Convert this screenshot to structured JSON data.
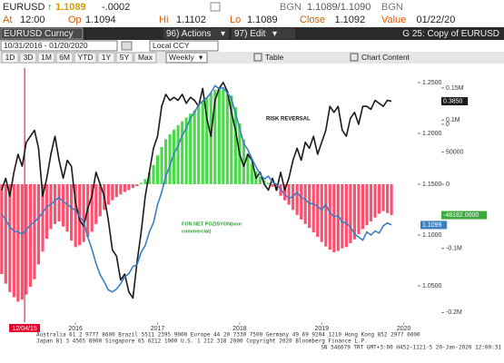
{
  "quote": {
    "ticker": "EURUSD",
    "last": "1.1089",
    "change": "-.0002",
    "bid_label": "BGN",
    "bid_ask": "1.1089/1.1090",
    "ask_label": "BGN"
  },
  "quote_details": [
    {
      "label": "At",
      "value": "12:00"
    },
    {
      "label": "Op",
      "value": "1.1094"
    },
    {
      "label": "Hi",
      "value": "1.1102"
    },
    {
      "label": "Lo",
      "value": "1.1089"
    },
    {
      "label": "Close",
      "value": "1.1092"
    },
    {
      "label": "Value",
      "value": "01/22/20"
    }
  ],
  "toolbar": {
    "security": "EURUSD Curncy",
    "actions": "96) Actions",
    "edit": "97) Edit",
    "chart_name": "G 25: Copy of EURUSD",
    "date_range": "10/31/2016 - 01/20/2020",
    "currency": "Local CCY",
    "periods": [
      "1D",
      "3D",
      "1M",
      "6M",
      "YTD",
      "1Y",
      "5Y",
      "Max"
    ],
    "frequency": "Weekly",
    "table": "Table",
    "chart_content": "Chart Content"
  },
  "chart_data": {
    "type": "combo",
    "annotations": [
      "RISK REVERSAL",
      "FON NET POZISYON(non",
      "commercial)"
    ],
    "cursor": {
      "x": 2015.38,
      "label": "12/04/15",
      "color": "#e8002a"
    },
    "x": [
      2015.1,
      2015.15,
      2015.2,
      2015.25,
      2015.3,
      2015.35,
      2015.4,
      2015.45,
      2015.5,
      2015.55,
      2015.6,
      2015.65,
      2015.7,
      2015.75,
      2015.8,
      2015.85,
      2015.9,
      2015.95,
      2016,
      2016.05,
      2016.1,
      2016.15,
      2016.2,
      2016.25,
      2016.3,
      2016.35,
      2016.4,
      2016.45,
      2016.5,
      2016.55,
      2016.6,
      2016.65,
      2016.7,
      2016.75,
      2016.8,
      2016.85,
      2016.9,
      2016.95,
      2017,
      2017.05,
      2017.1,
      2017.15,
      2017.2,
      2017.25,
      2017.3,
      2017.35,
      2017.4,
      2017.45,
      2017.5,
      2017.55,
      2017.6,
      2017.65,
      2017.7,
      2017.75,
      2017.8,
      2017.85,
      2017.9,
      2017.95,
      2018,
      2018.05,
      2018.1,
      2018.15,
      2018.2,
      2018.25,
      2018.3,
      2018.35,
      2018.4,
      2018.45,
      2018.5,
      2018.55,
      2018.6,
      2018.65,
      2018.7,
      2018.75,
      2018.8,
      2018.85,
      2018.9,
      2018.95,
      2019,
      2019.05,
      2019.1,
      2019.15,
      2019.2,
      2019.25,
      2019.3,
      2019.35,
      2019.4,
      2019.45,
      2019.5,
      2019.55,
      2019.6,
      2019.65,
      2019.7,
      2019.75,
      2019.8,
      2019.85
    ],
    "xlim": [
      2015.08,
      2020.17
    ],
    "xticks": [
      2016,
      2017,
      2018,
      2019,
      2020
    ],
    "ylim": [
      1.0143,
      1.2643
    ],
    "yticks": [
      {
        "value": 1.25,
        "label": "1.2500"
      },
      {
        "value": 1.2,
        "label": "1.2000"
      },
      {
        "value": 1.15,
        "label": "1.1500"
      },
      {
        "value": 1.1,
        "label": "1.1000"
      },
      {
        "value": 1.05,
        "label": "1.0500"
      }
    ],
    "y2lim": [
      -215000,
      181000
    ],
    "y2ticks": [
      {
        "value": 150000,
        "label": "0.15M"
      },
      {
        "value": 100000,
        "label": "0.1M"
      },
      50000,
      0,
      {
        "value": -100000,
        "label": "-0.1M"
      },
      {
        "value": -200000,
        "label": "-0.2M"
      }
    ],
    "y3lim": [
      -3.303,
      0.939
    ],
    "y3ticks": [
      0,
      {
        "value": -1.5,
        "label": "-1.5000"
      }
    ],
    "series": [
      {
        "name": "FON NET POZISYON(non commercial)",
        "type": "bar",
        "axis": "y2",
        "positive_color": "#4cd94c",
        "negative_color": "#ff4f6e",
        "tag_color": "#3aa83a",
        "last_label": "-48182.0000",
        "values": [
          -140000,
          -155000,
          -168000,
          -176000,
          -183000,
          -180000,
          -172000,
          -160000,
          -148000,
          -125000,
          -105000,
          -85000,
          -70000,
          -62000,
          -58000,
          -66000,
          -74000,
          -88000,
          -98000,
          -95000,
          -90000,
          -82000,
          -74000,
          -62000,
          -50000,
          -40000,
          -32000,
          -25000,
          -20000,
          -16000,
          -12000,
          -9000,
          -6000,
          -3000,
          2000,
          8000,
          18000,
          30000,
          45000,
          58000,
          70000,
          78000,
          85000,
          92000,
          98000,
          104000,
          110000,
          115000,
          120000,
          128000,
          135000,
          142000,
          147000,
          150000,
          148000,
          145000,
          138000,
          120000,
          95000,
          70000,
          48000,
          32000,
          20000,
          12000,
          6000,
          2000,
          -4000,
          -10000,
          -18000,
          -25000,
          -32000,
          -40000,
          -48000,
          -55000,
          -62000,
          -68000,
          -75000,
          -82000,
          -90000,
          -97000,
          -102000,
          -106000,
          -104000,
          -100000,
          -98000,
          -92000,
          -86000,
          -78000,
          -70000,
          -64000,
          -58000,
          -52000,
          -46000,
          -42000,
          -45000,
          -48182
        ]
      },
      {
        "name": "RISK REVERSAL",
        "type": "line",
        "axis": "y3",
        "color": "#1a1a1a",
        "last_label": "0.3850",
        "values": [
          -1.1,
          -0.9,
          -1.2,
          -0.8,
          -0.5,
          -0.7,
          -0.3,
          -0.2,
          -0.1,
          -0.4,
          -1.2,
          -0.9,
          -0.5,
          -0.2,
          -0.6,
          -0.9,
          -0.6,
          -0.7,
          -1.3,
          -1.6,
          -1.7,
          -1.4,
          -1.2,
          -0.8,
          -1.0,
          -1.2,
          -1.6,
          -2.1,
          -2.2,
          -2.6,
          -2.5,
          -2.8,
          -2.9,
          -2.3,
          -1.8,
          -1.2,
          -0.8,
          -0.4,
          -0.2,
          0.3,
          0.5,
          0.4,
          0.45,
          0.4,
          0.5,
          0.35,
          0.45,
          0.4,
          0.3,
          0.6,
          0.1,
          -0.2,
          0.4,
          0.6,
          0.7,
          0.55,
          0.2,
          -0.1,
          -0.5,
          -0.7,
          -0.5,
          -0.6,
          -0.9,
          -0.8,
          -1.0,
          -1.1,
          -0.9,
          -1.1,
          -0.8,
          -1.1,
          -0.9,
          -0.6,
          -0.4,
          -0.6,
          -0.3,
          -0.4,
          -0.2,
          -0.5,
          -0.3,
          -0.1,
          0.3,
          0.2,
          0.3,
          -0.1,
          -0.2,
          0.1,
          0.2,
          0.0,
          0.3,
          0.3,
          0.25,
          0.4,
          0.35,
          0.3,
          0.4,
          0.385
        ]
      },
      {
        "name": "EURUSD",
        "type": "line",
        "axis": "y",
        "color": "#3d7fc1",
        "last_label": "1.1099",
        "values": [
          1.121,
          1.115,
          1.108,
          1.104,
          1.103,
          1.101,
          1.105,
          1.11,
          1.113,
          1.117,
          1.122,
          1.128,
          1.13,
          1.134,
          1.137,
          1.133,
          1.13,
          1.127,
          1.124,
          1.118,
          1.113,
          1.098,
          1.086,
          1.072,
          1.061,
          1.054,
          1.046,
          1.044,
          1.047,
          1.052,
          1.059,
          1.062,
          1.069,
          1.071,
          1.083,
          1.09,
          1.103,
          1.112,
          1.13,
          1.142,
          1.158,
          1.168,
          1.18,
          1.188,
          1.198,
          1.205,
          1.215,
          1.221,
          1.228,
          1.232,
          1.235,
          1.24,
          1.247,
          1.244,
          1.245,
          1.24,
          1.234,
          1.22,
          1.205,
          1.19,
          1.184,
          1.175,
          1.167,
          1.16,
          1.155,
          1.158,
          1.152,
          1.15,
          1.145,
          1.14,
          1.136,
          1.138,
          1.142,
          1.137,
          1.135,
          1.131,
          1.131,
          1.128,
          1.125,
          1.13,
          1.122,
          1.118,
          1.119,
          1.113,
          1.112,
          1.108,
          1.101,
          1.098,
          1.095,
          1.103,
          1.1,
          1.104,
          1.102,
          1.109,
          1.112,
          1.1099
        ]
      }
    ]
  },
  "footer": [
    "Australia 61 2 9777 8600  Brazil 5511 2395 9000  Europe 44 20 7330 7500  Germany 49 69 9204 1210  Hong Kong 852 2977 6000",
    "Japan 81 3 4565 8900       Singapore 65 6212 1000       U.S. 1 212 318 2000       Copyright 2020 Bloomberg Finance L.P.",
    "SN 546679 TRT  GMT+3:00 H452-1121-5 20-Jan-2020 12:00:31"
  ]
}
